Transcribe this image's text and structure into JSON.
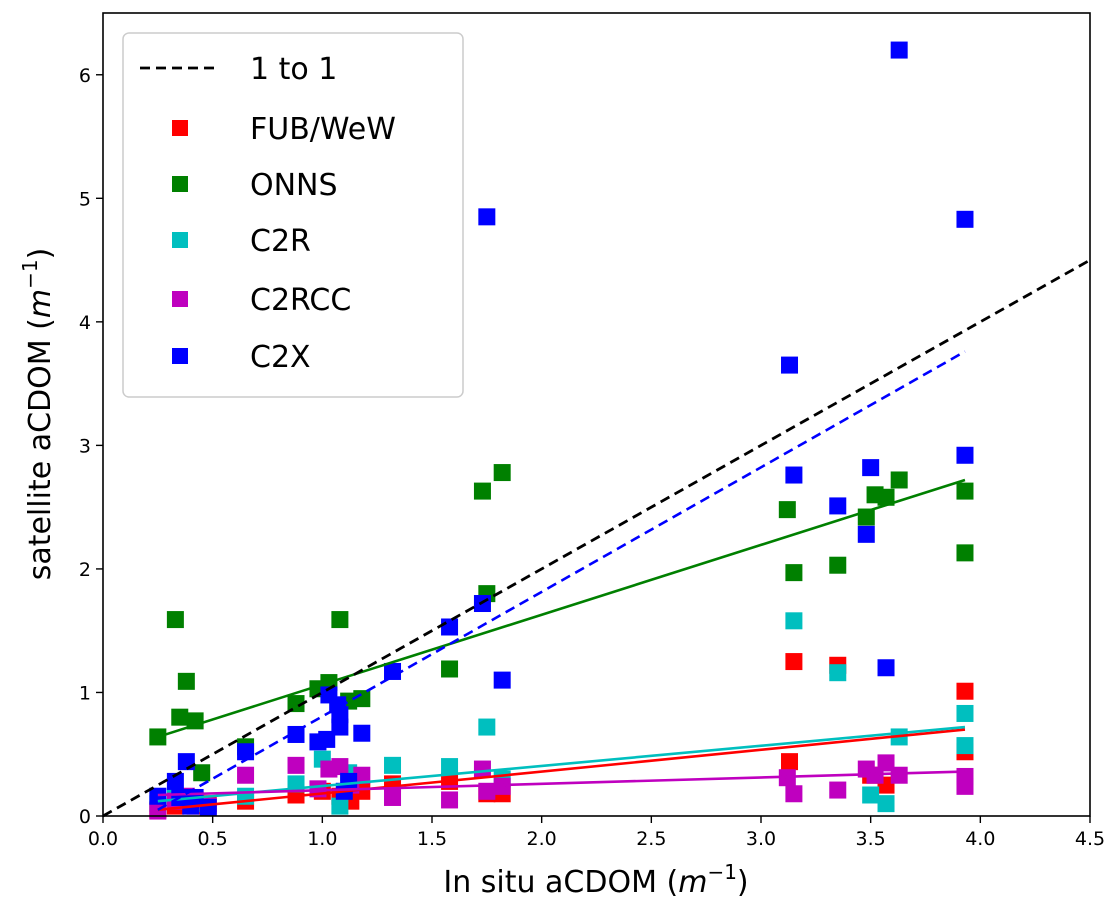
{
  "chart_data": {
    "type": "scatter",
    "xlabel": "In situ aCDOM (",
    "ylabel": "satellite aCDOM (",
    "unit_base": "m",
    "unit_exp": "−1",
    "unit_close": ")",
    "xlim": [
      0,
      4.5
    ],
    "ylim": [
      0,
      6.5
    ],
    "xticks": [
      0.0,
      0.5,
      1.0,
      1.5,
      2.0,
      2.5,
      3.0,
      3.5,
      4.0,
      4.5
    ],
    "xtick_labels": [
      "0.0",
      "0.5",
      "1.0",
      "1.5",
      "2.0",
      "2.5",
      "3.0",
      "3.5",
      "4.0",
      "4.5"
    ],
    "yticks": [
      0,
      1,
      2,
      3,
      4,
      5,
      6
    ],
    "ytick_labels": [
      "0",
      "1",
      "2",
      "3",
      "4",
      "5",
      "6"
    ],
    "grid": false,
    "legend_position": "top-left",
    "one_to_one": {
      "name": "1 to 1",
      "color": "#000000",
      "x": [
        0,
        4.5
      ],
      "y": [
        0,
        4.5
      ]
    },
    "series": [
      {
        "name": "FUB/WeW",
        "color": "#ff0000",
        "points": [
          [
            0.25,
            0.05
          ],
          [
            0.33,
            0.08
          ],
          [
            0.38,
            0.1
          ],
          [
            0.42,
            0.08
          ],
          [
            0.48,
            0.1
          ],
          [
            0.65,
            0.12
          ],
          [
            0.88,
            0.17
          ],
          [
            1.0,
            0.2
          ],
          [
            1.08,
            0.16
          ],
          [
            1.13,
            0.12
          ],
          [
            1.18,
            0.2
          ],
          [
            1.32,
            0.26
          ],
          [
            1.58,
            0.28
          ],
          [
            1.75,
            0.18
          ],
          [
            1.82,
            0.18
          ],
          [
            3.13,
            0.44
          ],
          [
            3.15,
            1.25
          ],
          [
            3.35,
            1.22
          ],
          [
            3.5,
            0.33
          ],
          [
            3.57,
            0.25
          ],
          [
            3.93,
            1.01
          ],
          [
            3.93,
            0.52
          ]
        ],
        "fit": {
          "x": [
            0.25,
            3.93
          ],
          "y": [
            0.05,
            0.7
          ],
          "dashed": false
        }
      },
      {
        "name": "ONNS",
        "color": "#008000",
        "points": [
          [
            0.25,
            0.64
          ],
          [
            0.33,
            1.59
          ],
          [
            0.35,
            0.8
          ],
          [
            0.38,
            1.09
          ],
          [
            0.42,
            0.77
          ],
          [
            0.45,
            0.35
          ],
          [
            0.65,
            0.56
          ],
          [
            0.88,
            0.91
          ],
          [
            0.98,
            1.03
          ],
          [
            1.03,
            1.08
          ],
          [
            1.08,
            1.59
          ],
          [
            1.12,
            0.93
          ],
          [
            1.18,
            0.95
          ],
          [
            1.58,
            1.19
          ],
          [
            1.73,
            2.63
          ],
          [
            1.75,
            1.8
          ],
          [
            1.82,
            2.78
          ],
          [
            3.12,
            2.48
          ],
          [
            3.15,
            1.97
          ],
          [
            3.35,
            2.03
          ],
          [
            3.48,
            2.42
          ],
          [
            3.52,
            2.6
          ],
          [
            3.57,
            2.58
          ],
          [
            3.63,
            2.72
          ],
          [
            3.93,
            2.63
          ],
          [
            3.93,
            2.13
          ]
        ],
        "fit": {
          "x": [
            0.25,
            3.93
          ],
          "y": [
            0.64,
            2.72
          ],
          "dashed": false
        }
      },
      {
        "name": "C2R",
        "color": "#00bfbf",
        "points": [
          [
            0.25,
            0.1
          ],
          [
            0.33,
            0.15
          ],
          [
            0.38,
            0.15
          ],
          [
            0.42,
            0.1
          ],
          [
            0.65,
            0.16
          ],
          [
            0.88,
            0.26
          ],
          [
            1.0,
            0.46
          ],
          [
            1.08,
            0.08
          ],
          [
            1.12,
            0.35
          ],
          [
            1.32,
            0.41
          ],
          [
            1.58,
            0.4
          ],
          [
            1.75,
            0.72
          ],
          [
            1.82,
            0.3
          ],
          [
            3.15,
            1.58
          ],
          [
            3.35,
            1.16
          ],
          [
            3.5,
            0.17
          ],
          [
            3.57,
            0.1
          ],
          [
            3.63,
            0.64
          ],
          [
            3.93,
            0.83
          ],
          [
            3.93,
            0.57
          ]
        ],
        "fit": {
          "x": [
            0.25,
            3.93
          ],
          "y": [
            0.12,
            0.72
          ],
          "dashed": false
        }
      },
      {
        "name": "C2RCC",
        "color": "#bf00bf",
        "points": [
          [
            0.25,
            0.04
          ],
          [
            0.33,
            0.12
          ],
          [
            0.38,
            0.16
          ],
          [
            0.42,
            0.13
          ],
          [
            0.48,
            0.08
          ],
          [
            0.65,
            0.33
          ],
          [
            0.88,
            0.41
          ],
          [
            0.98,
            0.22
          ],
          [
            1.03,
            0.38
          ],
          [
            1.08,
            0.4
          ],
          [
            1.13,
            0.25
          ],
          [
            1.18,
            0.33
          ],
          [
            1.32,
            0.15
          ],
          [
            1.58,
            0.13
          ],
          [
            1.73,
            0.38
          ],
          [
            1.75,
            0.2
          ],
          [
            1.82,
            0.24
          ],
          [
            3.12,
            0.31
          ],
          [
            3.15,
            0.18
          ],
          [
            3.35,
            0.21
          ],
          [
            3.48,
            0.38
          ],
          [
            3.52,
            0.33
          ],
          [
            3.57,
            0.43
          ],
          [
            3.63,
            0.33
          ],
          [
            3.93,
            0.32
          ],
          [
            3.93,
            0.24
          ]
        ],
        "fit": {
          "x": [
            0.25,
            3.93
          ],
          "y": [
            0.17,
            0.36
          ],
          "dashed": false
        }
      },
      {
        "name": "C2X",
        "color": "#0000ff",
        "points": [
          [
            0.25,
            0.16
          ],
          [
            0.33,
            0.28
          ],
          [
            0.35,
            0.15
          ],
          [
            0.38,
            0.44
          ],
          [
            0.4,
            0.08
          ],
          [
            0.42,
            0.15
          ],
          [
            0.48,
            0.07
          ],
          [
            0.65,
            0.52
          ],
          [
            0.88,
            0.66
          ],
          [
            0.98,
            0.6
          ],
          [
            1.02,
            0.62
          ],
          [
            1.03,
            0.98
          ],
          [
            1.07,
            0.9
          ],
          [
            1.08,
            0.82
          ],
          [
            1.08,
            0.72
          ],
          [
            1.1,
            0.2
          ],
          [
            1.12,
            0.28
          ],
          [
            1.18,
            0.67
          ],
          [
            1.32,
            1.17
          ],
          [
            1.58,
            1.53
          ],
          [
            1.73,
            1.72
          ],
          [
            1.75,
            4.85
          ],
          [
            1.82,
            1.1
          ],
          [
            3.13,
            3.65
          ],
          [
            3.15,
            2.76
          ],
          [
            3.35,
            2.51
          ],
          [
            3.48,
            2.28
          ],
          [
            3.5,
            2.82
          ],
          [
            3.57,
            1.2
          ],
          [
            3.63,
            6.2
          ],
          [
            3.93,
            4.83
          ],
          [
            3.93,
            2.92
          ]
        ],
        "fit": {
          "x": [
            0.25,
            3.93
          ],
          "y": [
            0.05,
            3.76
          ],
          "dashed": true
        }
      }
    ]
  }
}
